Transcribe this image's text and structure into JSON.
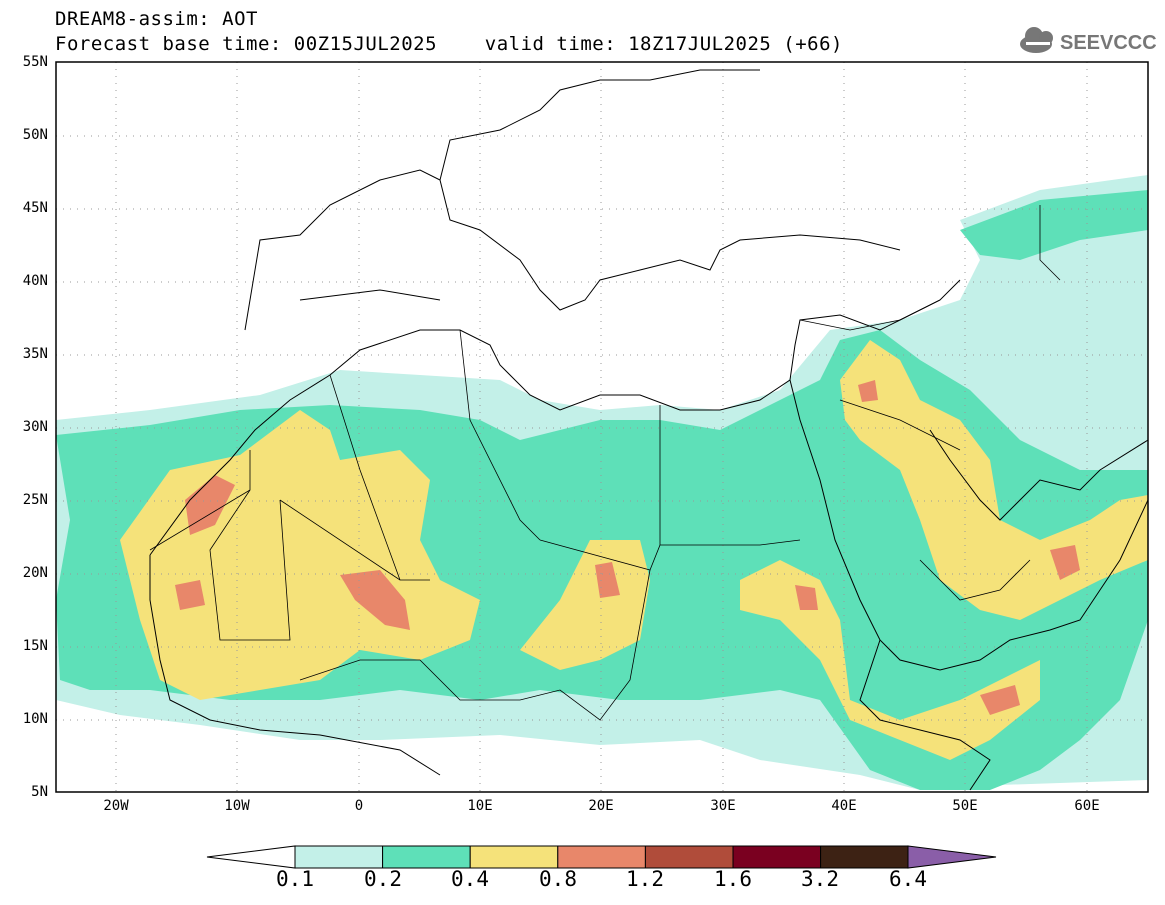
{
  "title": {
    "line1": "DREAM8-assim: AOT",
    "line2": "Forecast base time: 00Z15JUL2025    valid time: 18Z17JUL2025 (+66)"
  },
  "logo": {
    "text": "SEEVCCC",
    "icon": "cloud-icon"
  },
  "map": {
    "region": "North Africa / Middle East",
    "lon_range": [
      -25,
      65
    ],
    "lat_range": [
      5,
      55
    ],
    "lat_labels": [
      "55N",
      "50N",
      "45N",
      "40N",
      "35N",
      "30N",
      "25N",
      "20N",
      "15N",
      "10N",
      "5N"
    ],
    "lon_labels": [
      "20W",
      "10W",
      "0",
      "10E",
      "20E",
      "30E",
      "40E",
      "50E",
      "60E"
    ],
    "gridlines": "dotted"
  },
  "colorbar": {
    "levels": [
      "0.1",
      "0.2",
      "0.4",
      "0.8",
      "1.2",
      "1.6",
      "3.2",
      "6.4"
    ],
    "colors": [
      "#c3f0e8",
      "#5ee0b8",
      "#f5e27a",
      "#e8876a",
      "#b04c3a",
      "#7a0020",
      "#3d2214"
    ],
    "under_color": "#ffffff",
    "over_color": "#8a5ea8"
  }
}
